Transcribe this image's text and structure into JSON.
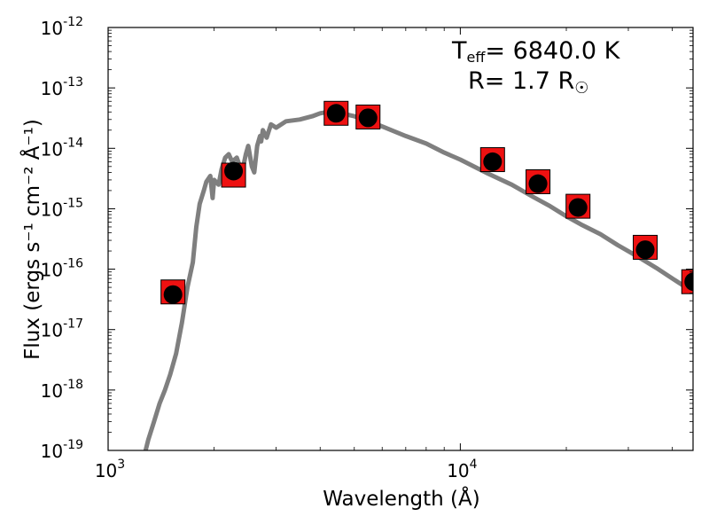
{
  "chart_data": {
    "type": "scatter",
    "title": "",
    "xlabel": "Wavelength (Å)",
    "ylabel": "Flux (ergs s⁻¹ cm⁻² Å⁻¹)",
    "x_scale": "log",
    "y_scale": "log",
    "xlim": [
      1000,
      45800
    ],
    "ylim": [
      1e-19,
      1e-12
    ],
    "x_ticks": [
      {
        "value": 1000,
        "base": "10",
        "exp": "3"
      },
      {
        "value": 10000,
        "base": "10",
        "exp": "4"
      }
    ],
    "y_ticks": [
      {
        "value": 1e-19,
        "base": "10",
        "exp": "-19"
      },
      {
        "value": 1e-18,
        "base": "10",
        "exp": "-18"
      },
      {
        "value": 1e-17,
        "base": "10",
        "exp": "-17"
      },
      {
        "value": 1e-16,
        "base": "10",
        "exp": "-16"
      },
      {
        "value": 1e-15,
        "base": "10",
        "exp": "-15"
      },
      {
        "value": 1e-14,
        "base": "10",
        "exp": "-14"
      },
      {
        "value": 1e-13,
        "base": "10",
        "exp": "-13"
      },
      {
        "value": 1e-12,
        "base": "10",
        "exp": "-12"
      }
    ],
    "grid": false,
    "legend": "none",
    "colors": {
      "model": "#7f7f7f",
      "observed_marker": "#ee1111",
      "model_marker": "#000000"
    },
    "series": [
      {
        "style": "line",
        "x": [
          1250,
          1300,
          1350,
          1400,
          1450,
          1500,
          1560,
          1620,
          1680,
          1740,
          1780,
          1820,
          1870,
          1900,
          1950,
          1980,
          2000,
          2060,
          2100,
          2150,
          2200,
          2250,
          2320,
          2400,
          2460,
          2500,
          2560,
          2600,
          2650,
          2700,
          2720,
          2750,
          2820,
          2900,
          3000,
          3200,
          3500,
          3800,
          4000,
          4200,
          4500,
          5000,
          5500,
          6000,
          7000,
          8000,
          9000,
          10000,
          12000,
          14000,
          16000,
          18000,
          20000,
          22000,
          25000,
          28000,
          32000,
          36000,
          40000,
          45000
        ],
        "y": [
          6e-20,
          1.5e-19,
          3e-19,
          6e-19,
          1e-18,
          1.8e-18,
          4e-18,
          1.3e-17,
          5e-17,
          1.3e-16,
          5e-16,
          1.2e-15,
          2e-15,
          2.8e-15,
          3.5e-15,
          1.5e-15,
          3e-15,
          2.5e-15,
          4.5e-15,
          7e-15,
          8e-15,
          6e-15,
          7e-15,
          4e-15,
          8e-15,
          1.1e-14,
          5e-15,
          4e-15,
          1.1e-14,
          1.6e-14,
          1.3e-14,
          2e-14,
          1.5e-14,
          2.5e-14,
          2.2e-14,
          2.8e-14,
          3e-14,
          3.4e-14,
          3.8e-14,
          4e-14,
          3.9e-14,
          3.4e-14,
          2.8e-14,
          2.3e-14,
          1.6e-14,
          1.2e-14,
          8.5e-15,
          6.5e-15,
          3.8e-15,
          2.5e-15,
          1.6e-15,
          1.1e-15,
          7.5e-16,
          5.5e-16,
          3.8e-16,
          2.5e-16,
          1.6e-16,
          1.05e-16,
          7e-17,
          4.5e-17
        ]
      },
      {
        "style": "square",
        "x": [
          1528,
          2271,
          4440,
          5470,
          12350,
          16620,
          21590,
          33500,
          46000
        ],
        "y": [
          4.2e-17,
          3.6e-15,
          3.8e-14,
          3.3e-14,
          6.5e-15,
          2.8e-15,
          1.1e-15,
          2.3e-16,
          6.2e-17
        ]
      },
      {
        "style": "circle",
        "x": [
          1528,
          2271,
          4440,
          5470,
          12350,
          16620,
          21590,
          33500,
          46000
        ],
        "y": [
          3.8e-17,
          4.2e-15,
          3.8e-14,
          3.2e-14,
          6e-15,
          2.6e-15,
          1.05e-15,
          2.1e-16,
          6.2e-17
        ]
      }
    ],
    "annotations": {
      "teff_label": "T",
      "teff_sub": "eff",
      "teff_value": "= 6840.0 K",
      "radius_text": "R= 1.7 R",
      "radius_symbol": "☉"
    }
  }
}
